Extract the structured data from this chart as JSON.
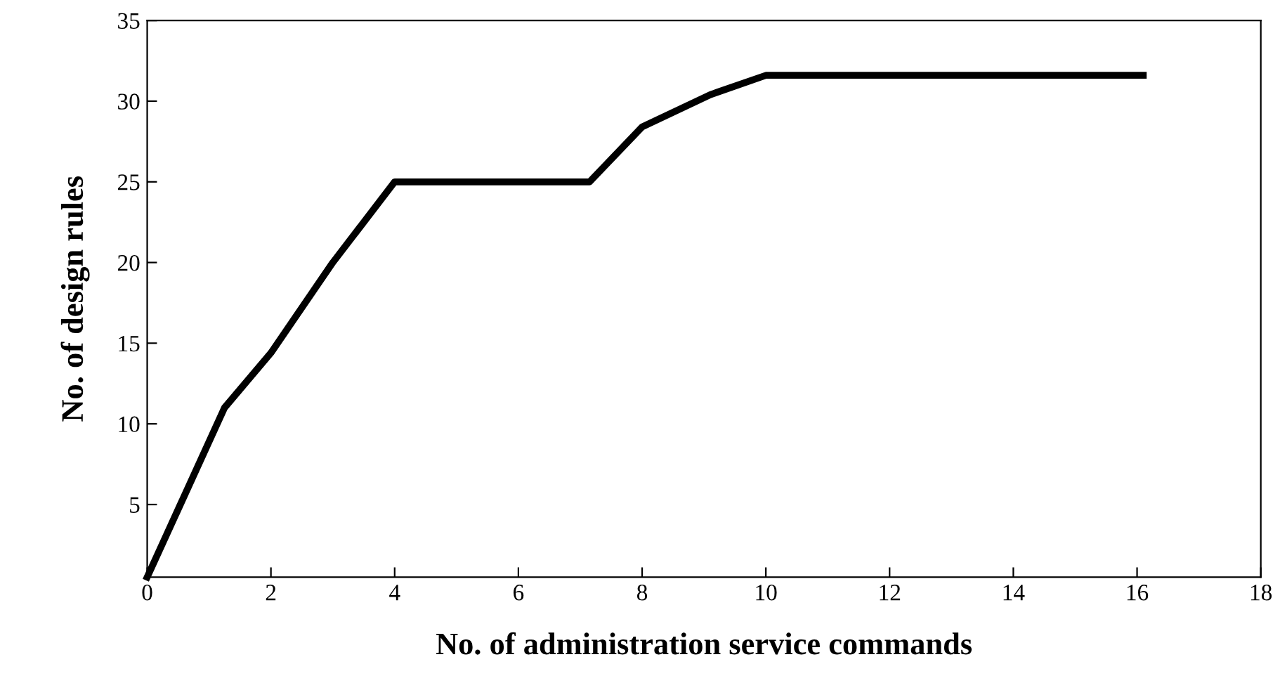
{
  "chart_data": {
    "type": "line",
    "xlabel": "No. of administration service commands",
    "ylabel": "No. of design rules",
    "x": [
      0,
      1.25,
      2,
      3,
      4,
      7.15,
      8,
      9.1,
      10,
      16.1
    ],
    "series": [
      {
        "color": "#000000",
        "values": [
          0.5,
          11,
          14.4,
          20,
          25,
          25,
          28.4,
          30.4,
          31.6,
          31.6
        ]
      }
    ],
    "xlim": [
      0,
      18
    ],
    "xticks": [
      0,
      2,
      4,
      6,
      8,
      10,
      12,
      14,
      16,
      18
    ],
    "ylim": [
      0.5,
      35
    ],
    "yticks": [
      5,
      10,
      15,
      20,
      25,
      30,
      35
    ],
    "grid": false,
    "legend": false,
    "marker": "none",
    "line_style": "solid"
  }
}
